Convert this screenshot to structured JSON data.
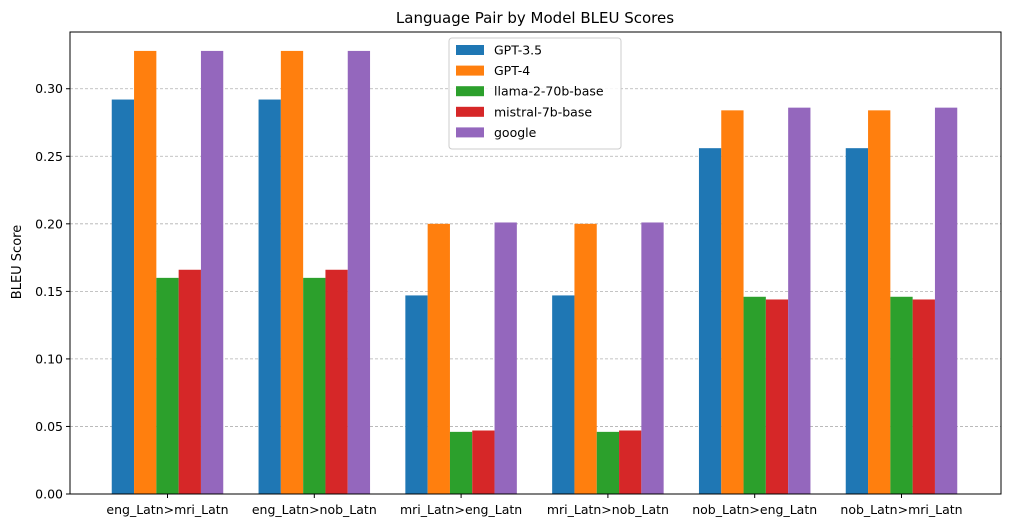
{
  "chart_data": {
    "type": "bar",
    "title": "Language Pair by Model BLEU Scores",
    "xlabel": "",
    "ylabel": "BLEU Score",
    "ylim": [
      0,
      0.342
    ],
    "yticks": [
      "0.00",
      "0.05",
      "0.10",
      "0.15",
      "0.20",
      "0.25",
      "0.30"
    ],
    "ytick_values": [
      0,
      0.05,
      0.1,
      0.15,
      0.2,
      0.25,
      0.3
    ],
    "grid": "horizontal dashed",
    "legend_position": "top-center",
    "categories": [
      "eng_Latn>mri_Latn",
      "eng_Latn>nob_Latn",
      "mri_Latn>eng_Latn",
      "mri_Latn>nob_Latn",
      "nob_Latn>eng_Latn",
      "nob_Latn>mri_Latn"
    ],
    "series": [
      {
        "name": "GPT-3.5",
        "color": "#1f77b4",
        "values": [
          0.292,
          0.292,
          0.147,
          0.147,
          0.256,
          0.256
        ]
      },
      {
        "name": "GPT-4",
        "color": "#ff7f0e",
        "values": [
          0.328,
          0.328,
          0.2,
          0.2,
          0.284,
          0.284
        ]
      },
      {
        "name": "llama-2-70b-base",
        "color": "#2ca02c",
        "values": [
          0.16,
          0.16,
          0.046,
          0.046,
          0.146,
          0.146
        ]
      },
      {
        "name": "mistral-7b-base",
        "color": "#d62728",
        "values": [
          0.166,
          0.166,
          0.047,
          0.047,
          0.144,
          0.144
        ]
      },
      {
        "name": "google",
        "color": "#9467bd",
        "values": [
          0.328,
          0.328,
          0.201,
          0.201,
          0.286,
          0.286
        ]
      }
    ]
  }
}
